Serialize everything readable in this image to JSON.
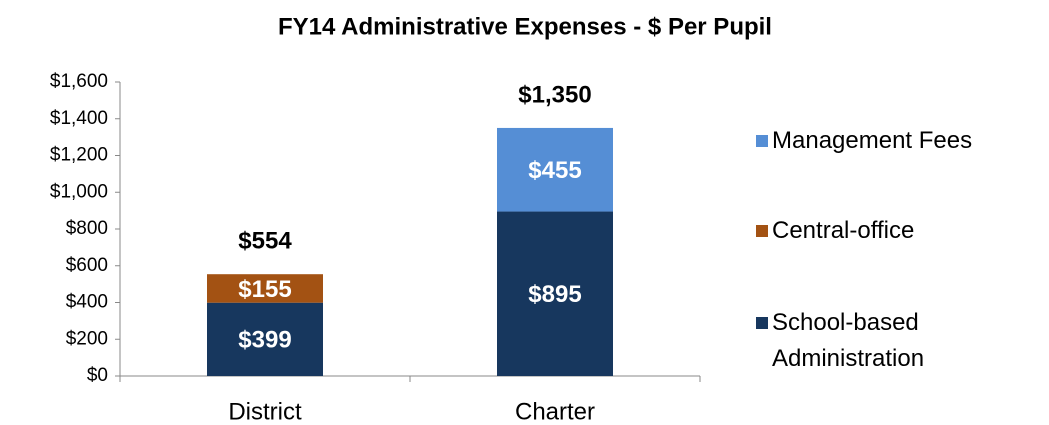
{
  "chart_data": {
    "type": "stacked_bar",
    "title": "FY14 Administrative Expenses - $ Per Pupil",
    "categories": [
      "District",
      "Charter"
    ],
    "series": [
      {
        "name": "School-based Administration",
        "color": "#17375e",
        "values": [
          399,
          895
        ],
        "value_labels": [
          "$399",
          "$895"
        ]
      },
      {
        "name": "Central-office",
        "color": "#a35213",
        "values": [
          155,
          null
        ],
        "value_labels": [
          "$155",
          null
        ]
      },
      {
        "name": "Management Fees",
        "color": "#558ed5",
        "values": [
          null,
          455
        ],
        "value_labels": [
          null,
          "$455"
        ]
      }
    ],
    "totals": [
      554,
      1350
    ],
    "total_labels": [
      "$554",
      "$1,350"
    ],
    "ylim": [
      0,
      1600
    ],
    "yticks": [
      {
        "value": 0,
        "label": "$0"
      },
      {
        "value": 200,
        "label": "$200"
      },
      {
        "value": 400,
        "label": "$400"
      },
      {
        "value": 600,
        "label": "$600"
      },
      {
        "value": 800,
        "label": "$800"
      },
      {
        "value": 1000,
        "label": "$1,000"
      },
      {
        "value": 1200,
        "label": "$1,200"
      },
      {
        "value": 1400,
        "label": "$1,400"
      },
      {
        "value": 1600,
        "label": "$1,600"
      }
    ],
    "legend": "right"
  }
}
